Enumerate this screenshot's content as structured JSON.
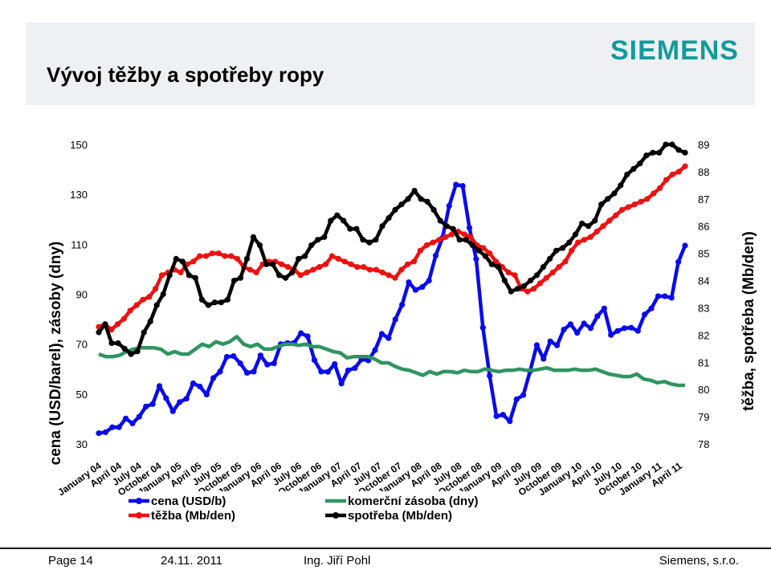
{
  "slide": {
    "title": "Vývoj těžby a spotřeby ropy",
    "logo": "SIEMENS"
  },
  "footer": {
    "page": "Page 14",
    "date": "24.11. 2011",
    "author": "Ing. Jiří Pohl",
    "company": "Siemens, s.r.o."
  },
  "colors": {
    "price": "#0a0aee",
    "stock": "#2f9461",
    "production": "#ee1111",
    "consumption": "#000000",
    "logo": "#149a9b"
  },
  "chart_data": {
    "type": "line",
    "ylabel": "cena (USD/barel), zásoby (dny)",
    "y2label": "těžba, spotřeba (Mb/den)",
    "ylim": [
      30,
      150
    ],
    "y_ticks": [
      "30",
      "50",
      "70",
      "90",
      "110",
      "130",
      "150"
    ],
    "y2lim": [
      78,
      89
    ],
    "y2_ticks": [
      "78",
      "79",
      "80",
      "81",
      "82",
      "83",
      "84",
      "85",
      "86",
      "87",
      "88",
      "89"
    ],
    "x_ticks": [
      "January 04",
      "April 04",
      "July 04",
      "October 04",
      "January 05",
      "April 05",
      "July 05",
      "October 05",
      "January 06",
      "April 06",
      "July 06",
      "October 06",
      "January 07",
      "April 07",
      "July 07",
      "October 07",
      "January 08",
      "April 08",
      "July 08",
      "October 08",
      "January 09",
      "April 09",
      "July 09",
      "October 09",
      "January 10",
      "April 10",
      "July 10",
      "October 10",
      "January 11",
      "April 11"
    ],
    "grid": false,
    "legend_position": "bottom",
    "series": [
      {
        "name": "cena (USD/b)",
        "axis": "left",
        "values": [
          34.3,
          34.7,
          36.7,
          36.7,
          40.2,
          38.2,
          40.9,
          45.0,
          46.0,
          53.2,
          48.3,
          43.1,
          46.8,
          48.1,
          54.3,
          53.0,
          49.8,
          56.4,
          59.0,
          64.9,
          65.2,
          62.3,
          58.5,
          59.0,
          65.5,
          61.8,
          62.3,
          70.0,
          70.4,
          70.5,
          74.4,
          73.1,
          63.6,
          59.0,
          58.9,
          62.0,
          54.2,
          59.5,
          60.4,
          63.9,
          63.5,
          67.6,
          74.1,
          72.4,
          79.9,
          85.8,
          94.8,
          91.7,
          92.9,
          95.4,
          105.5,
          112.6,
          125.4,
          133.9,
          133.4,
          116.6,
          104.1,
          76.6,
          57.3,
          41.1,
          41.7,
          39.1,
          47.9,
          49.6,
          59.1,
          69.6,
          64.1,
          71.1,
          69.5,
          75.8,
          78.0,
          74.5,
          78.3,
          76.4,
          81.2,
          84.3,
          73.7,
          75.3,
          76.4,
          76.6,
          75.3,
          81.9,
          84.3,
          89.2,
          89.2,
          88.6,
          102.9,
          109.5
        ]
      },
      {
        "name": "komerční zásoba (dny)",
        "axis": "left",
        "values": [
          66,
          65,
          65,
          65.5,
          67,
          68,
          68.5,
          68.5,
          68.5,
          68,
          66,
          67,
          66,
          66,
          68,
          70,
          69,
          71,
          70,
          71,
          73,
          70,
          69,
          70,
          68,
          68,
          69,
          70,
          70,
          69.5,
          70,
          69,
          69,
          68,
          67,
          66.5,
          64.5,
          65,
          65,
          65,
          64,
          62.5,
          62.5,
          61,
          60,
          59.5,
          58.5,
          57.5,
          59,
          58,
          59,
          59,
          58.5,
          59.5,
          59,
          59,
          60,
          59.5,
          59,
          59.5,
          59.5,
          60,
          59.5,
          59.5,
          60,
          60.5,
          59.5,
          59.5,
          59.5,
          60,
          59.5,
          59.5,
          60,
          59,
          58,
          57.5,
          57,
          57,
          58,
          56,
          55.5,
          54.5,
          55,
          54,
          53.5,
          53.5
        ]
      },
      {
        "name": "těžba (Mb/den)",
        "axis": "right",
        "values": [
          82.3,
          82.4,
          82.2,
          82.4,
          82.6,
          82.9,
          83.1,
          83.3,
          83.4,
          83.7,
          84.2,
          84.3,
          84.4,
          84.3,
          84.6,
          84.7,
          84.9,
          84.9,
          85.0,
          85.0,
          84.9,
          84.9,
          84.8,
          84.5,
          84.4,
          84.3,
          84.6,
          84.7,
          84.7,
          84.6,
          84.5,
          84.4,
          84.2,
          84.3,
          84.4,
          84.5,
          84.6,
          84.9,
          84.8,
          84.7,
          84.6,
          84.5,
          84.5,
          84.4,
          84.4,
          84.3,
          84.2,
          84.1,
          84.4,
          84.6,
          84.7,
          85.1,
          85.3,
          85.4,
          85.5,
          85.6,
          85.7,
          85.8,
          85.7,
          85.6,
          85.3,
          85.2,
          85.0,
          84.7,
          84.5,
          84.3,
          84.2,
          83.7,
          83.6,
          83.7,
          83.9,
          84.1,
          84.3,
          84.5,
          84.7,
          85.1,
          85.4,
          85.5,
          85.6,
          85.8,
          86.0,
          86.2,
          86.4,
          86.6,
          86.7,
          86.8,
          86.9,
          87.0,
          87.2,
          87.4,
          87.7,
          87.9,
          88.0,
          88.2
        ]
      },
      {
        "name": "spotřeba (Mb/den)",
        "axis": "right",
        "values": [
          82.1,
          82.4,
          81.7,
          81.7,
          81.5,
          81.3,
          81.4,
          82.1,
          82.5,
          83.1,
          83.5,
          84.2,
          84.8,
          84.7,
          84.2,
          84.1,
          83.3,
          83.1,
          83.2,
          83.2,
          83.3,
          84.0,
          84.1,
          84.8,
          85.6,
          85.3,
          84.6,
          84.6,
          84.2,
          84.1,
          84.3,
          84.8,
          84.9,
          85.3,
          85.5,
          85.6,
          86.2,
          86.4,
          86.2,
          85.9,
          85.9,
          85.5,
          85.4,
          85.5,
          86.0,
          86.3,
          86.6,
          86.8,
          87.0,
          87.3,
          87.0,
          86.9,
          86.6,
          86.2,
          86.0,
          85.9,
          85.5,
          85.5,
          85.3,
          85.1,
          84.9,
          84.6,
          84.5,
          84.0,
          83.6,
          83.7,
          83.8,
          84.0,
          84.2,
          84.5,
          84.8,
          85.1,
          85.2,
          85.4,
          85.7,
          86.1,
          86.0,
          86.2,
          86.8,
          87.0,
          87.2,
          87.5,
          87.9,
          88.1,
          88.3,
          88.6,
          88.7,
          88.7,
          89.0,
          89.0,
          88.8,
          88.7
        ]
      }
    ]
  }
}
